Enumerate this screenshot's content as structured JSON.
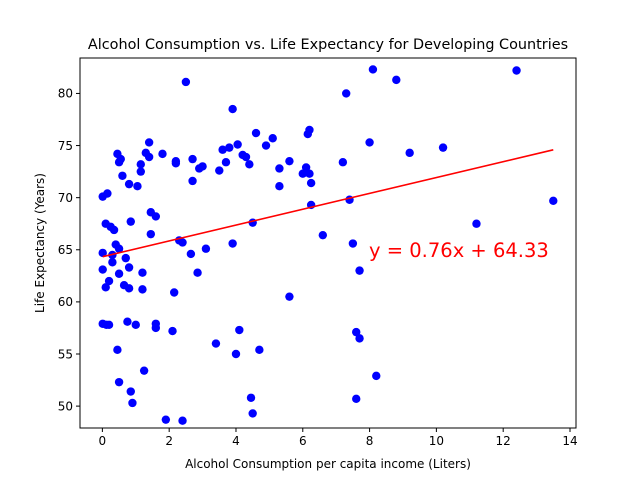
{
  "chart_data": {
    "type": "scatter",
    "title": "Alcohol Consumption vs. Life Expectancy for Developing Countries",
    "xlabel": "Alcohol Consumption per capita income (Liters)",
    "ylabel": "Life Expectancy (Years)",
    "xlim": [
      -0.67,
      14.18
    ],
    "ylim": [
      47.9,
      83.4
    ],
    "xticks": [
      0,
      2,
      4,
      6,
      8,
      10,
      12,
      14
    ],
    "yticks": [
      50,
      55,
      60,
      65,
      70,
      75,
      80
    ],
    "grid": false,
    "point_color": "#0000ff",
    "regression": {
      "equation": "y = 0.76x + 64.33",
      "slope": 0.76,
      "intercept": 64.33,
      "x_range": [
        0.01,
        13.5
      ],
      "color": "#ff0000"
    },
    "points": [
      [
        0.01,
        64.7
      ],
      [
        0.01,
        63.1
      ],
      [
        0.01,
        57.9
      ],
      [
        0.01,
        70.1
      ],
      [
        0.1,
        67.5
      ],
      [
        0.1,
        61.4
      ],
      [
        0.12,
        57.8
      ],
      [
        0.15,
        70.4
      ],
      [
        0.2,
        57.8
      ],
      [
        0.2,
        62.0
      ],
      [
        0.25,
        67.2
      ],
      [
        0.3,
        64.5
      ],
      [
        0.3,
        63.8
      ],
      [
        0.35,
        66.9
      ],
      [
        0.4,
        65.5
      ],
      [
        0.45,
        55.4
      ],
      [
        0.45,
        74.2
      ],
      [
        0.5,
        73.4
      ],
      [
        0.5,
        65.1
      ],
      [
        0.5,
        62.7
      ],
      [
        0.5,
        52.3
      ],
      [
        0.55,
        73.7
      ],
      [
        0.6,
        72.1
      ],
      [
        0.65,
        61.6
      ],
      [
        0.7,
        64.2
      ],
      [
        0.75,
        58.1
      ],
      [
        0.8,
        63.3
      ],
      [
        0.8,
        61.3
      ],
      [
        0.8,
        71.3
      ],
      [
        0.85,
        67.7
      ],
      [
        0.85,
        51.4
      ],
      [
        0.9,
        50.3
      ],
      [
        1.0,
        57.8
      ],
      [
        1.05,
        71.1
      ],
      [
        1.15,
        73.2
      ],
      [
        1.15,
        72.5
      ],
      [
        1.2,
        62.8
      ],
      [
        1.2,
        61.2
      ],
      [
        1.25,
        53.4
      ],
      [
        1.3,
        74.3
      ],
      [
        1.4,
        75.3
      ],
      [
        1.4,
        73.9
      ],
      [
        1.45,
        66.5
      ],
      [
        1.45,
        68.6
      ],
      [
        1.6,
        68.2
      ],
      [
        1.6,
        57.5
      ],
      [
        1.6,
        57.9
      ],
      [
        1.8,
        74.2
      ],
      [
        1.9,
        48.7
      ],
      [
        2.1,
        57.2
      ],
      [
        2.15,
        60.9
      ],
      [
        2.2,
        73.3
      ],
      [
        2.2,
        73.5
      ],
      [
        2.3,
        65.9
      ],
      [
        2.4,
        65.7
      ],
      [
        2.4,
        48.6
      ],
      [
        2.5,
        81.1
      ],
      [
        2.65,
        64.6
      ],
      [
        2.7,
        73.7
      ],
      [
        2.7,
        71.6
      ],
      [
        2.85,
        62.8
      ],
      [
        2.9,
        72.8
      ],
      [
        3.0,
        73.0
      ],
      [
        3.1,
        65.1
      ],
      [
        3.4,
        56.0
      ],
      [
        3.5,
        72.6
      ],
      [
        3.6,
        74.6
      ],
      [
        3.7,
        73.4
      ],
      [
        3.8,
        74.8
      ],
      [
        3.9,
        65.6
      ],
      [
        3.9,
        78.5
      ],
      [
        4.0,
        55.0
      ],
      [
        4.05,
        75.1
      ],
      [
        4.1,
        57.3
      ],
      [
        4.2,
        74.1
      ],
      [
        4.3,
        73.9
      ],
      [
        4.4,
        73.2
      ],
      [
        4.45,
        50.8
      ],
      [
        4.5,
        49.3
      ],
      [
        4.5,
        67.6
      ],
      [
        4.6,
        76.2
      ],
      [
        4.7,
        55.4
      ],
      [
        4.9,
        75.0
      ],
      [
        5.1,
        75.7
      ],
      [
        5.3,
        71.1
      ],
      [
        5.3,
        72.8
      ],
      [
        5.6,
        60.5
      ],
      [
        5.6,
        73.5
      ],
      [
        6.0,
        72.3
      ],
      [
        6.1,
        72.9
      ],
      [
        6.15,
        76.1
      ],
      [
        6.2,
        72.3
      ],
      [
        6.2,
        76.5
      ],
      [
        6.25,
        69.3
      ],
      [
        6.25,
        71.4
      ],
      [
        6.6,
        66.4
      ],
      [
        7.2,
        73.4
      ],
      [
        7.3,
        80.0
      ],
      [
        7.4,
        69.8
      ],
      [
        7.5,
        65.6
      ],
      [
        7.6,
        57.1
      ],
      [
        7.6,
        50.7
      ],
      [
        7.7,
        56.5
      ],
      [
        7.7,
        63.0
      ],
      [
        8.0,
        75.3
      ],
      [
        8.1,
        82.3
      ],
      [
        8.2,
        52.9
      ],
      [
        8.8,
        81.3
      ],
      [
        9.2,
        74.3
      ],
      [
        10.2,
        74.8
      ],
      [
        11.2,
        67.5
      ],
      [
        12.4,
        82.2
      ],
      [
        13.5,
        69.7
      ]
    ]
  }
}
